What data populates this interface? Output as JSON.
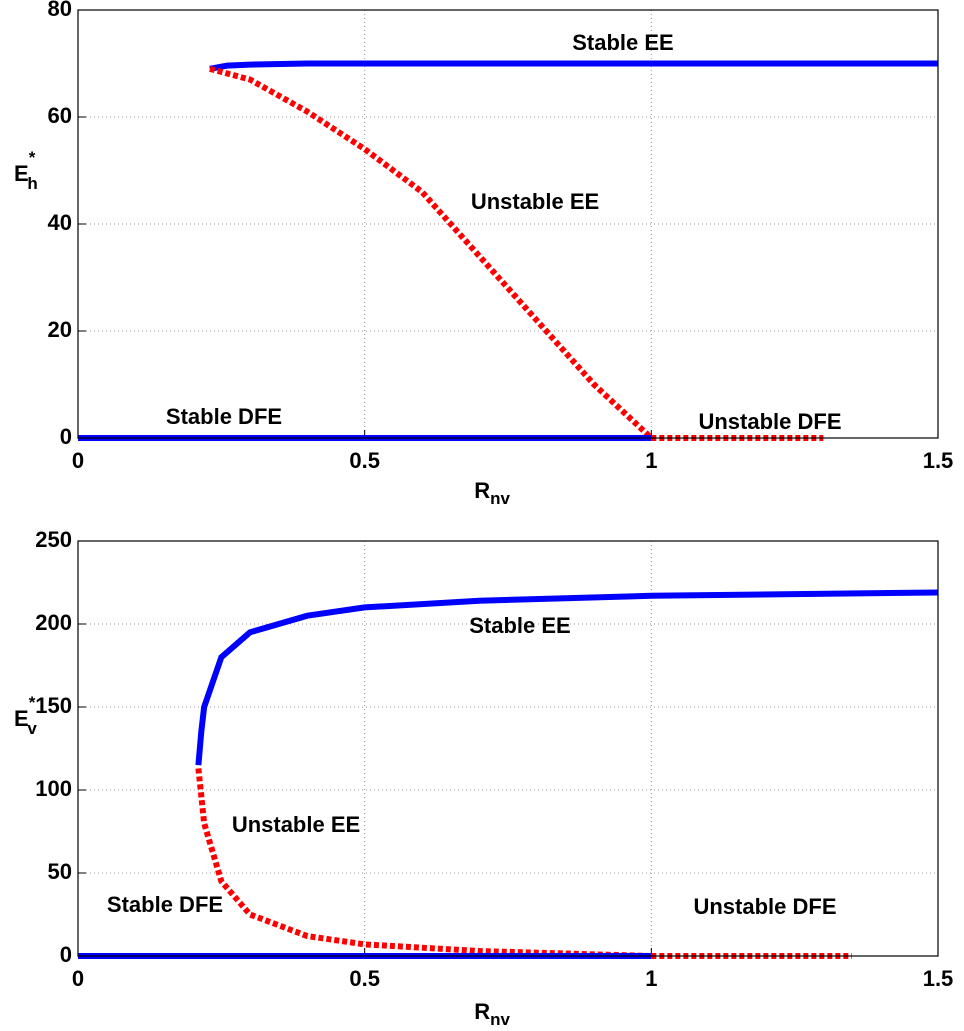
{
  "chart_data": [
    {
      "type": "line",
      "xlabel": {
        "base": "R",
        "sub": "nv"
      },
      "ylabel": {
        "base": "E",
        "sub": "h",
        "sup": "*"
      },
      "xlim": [
        0,
        1.5
      ],
      "xticks": [
        0,
        0.5,
        1,
        1.5
      ],
      "ylim": [
        0,
        80
      ],
      "yticks": [
        0,
        20,
        40,
        60,
        80
      ],
      "grid": true,
      "series": [
        {
          "name": "Stable EE",
          "color": "#0000ff",
          "style": "solid",
          "x": [
            0.23,
            0.26,
            0.3,
            0.4,
            0.6,
            1.0,
            1.5
          ],
          "y": [
            69,
            69.6,
            69.8,
            70,
            70,
            70,
            70
          ]
        },
        {
          "name": "Unstable EE",
          "color": "#ff0000",
          "style": "dashed",
          "x": [
            0.23,
            0.3,
            0.4,
            0.5,
            0.6,
            0.7,
            0.8,
            0.9,
            1.0
          ],
          "y": [
            69,
            67,
            61,
            54,
            46,
            34,
            22,
            10,
            0
          ]
        },
        {
          "name": "Stable DFE",
          "color": "#0000ff",
          "style": "solid",
          "x": [
            0,
            1
          ],
          "y": [
            0,
            0
          ]
        },
        {
          "name": "Unstable DFE",
          "color": "#ff0000",
          "style": "dashed",
          "x": [
            1,
            1.3
          ],
          "y": [
            0,
            0
          ]
        }
      ]
    },
    {
      "type": "line",
      "xlabel": {
        "base": "R",
        "sub": "nv"
      },
      "ylabel": {
        "base": "E",
        "sub": "v",
        "sup": "*"
      },
      "xlim": [
        0,
        1.5
      ],
      "xticks": [
        0,
        0.5,
        1,
        1.5
      ],
      "ylim": [
        0,
        250
      ],
      "yticks": [
        0,
        50,
        100,
        150,
        200,
        250
      ],
      "grid": true,
      "series": [
        {
          "name": "Stable EE",
          "color": "#0000ff",
          "style": "solid",
          "x": [
            0.21,
            0.215,
            0.22,
            0.25,
            0.3,
            0.4,
            0.5,
            0.7,
            1.0,
            1.5
          ],
          "y": [
            115,
            135,
            150,
            180,
            195,
            205,
            210,
            214,
            217,
            219
          ]
        },
        {
          "name": "Unstable EE",
          "color": "#ff0000",
          "style": "dashed",
          "x": [
            0.21,
            0.22,
            0.25,
            0.3,
            0.4,
            0.5,
            0.7,
            1.0
          ],
          "y": [
            113,
            80,
            45,
            25,
            12,
            7,
            3,
            0
          ]
        },
        {
          "name": "Stable DFE",
          "color": "#0000ff",
          "style": "solid",
          "x": [
            0,
            1
          ],
          "y": [
            0,
            0
          ]
        },
        {
          "name": "Unstable DFE",
          "color": "#ff0000",
          "style": "dashed",
          "x": [
            1,
            1.35
          ],
          "y": [
            0,
            0
          ]
        }
      ]
    }
  ]
}
